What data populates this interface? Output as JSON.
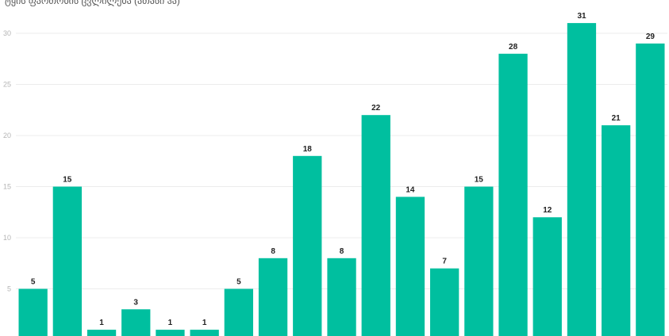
{
  "chart_data": {
    "type": "bar",
    "title": "ტყის ფართობის ცვლილება (ათასი ჰა)",
    "xlabel": "",
    "ylabel": "",
    "ylim": [
      0,
      32.5
    ],
    "yticks": [
      5,
      10,
      15,
      20,
      25,
      30
    ],
    "grid": true,
    "bar_color": "#00bf9f",
    "values": [
      5,
      15,
      1,
      3,
      1,
      1,
      5,
      8,
      18,
      8,
      22,
      14,
      7,
      15,
      28,
      12,
      31,
      21,
      29
    ]
  }
}
